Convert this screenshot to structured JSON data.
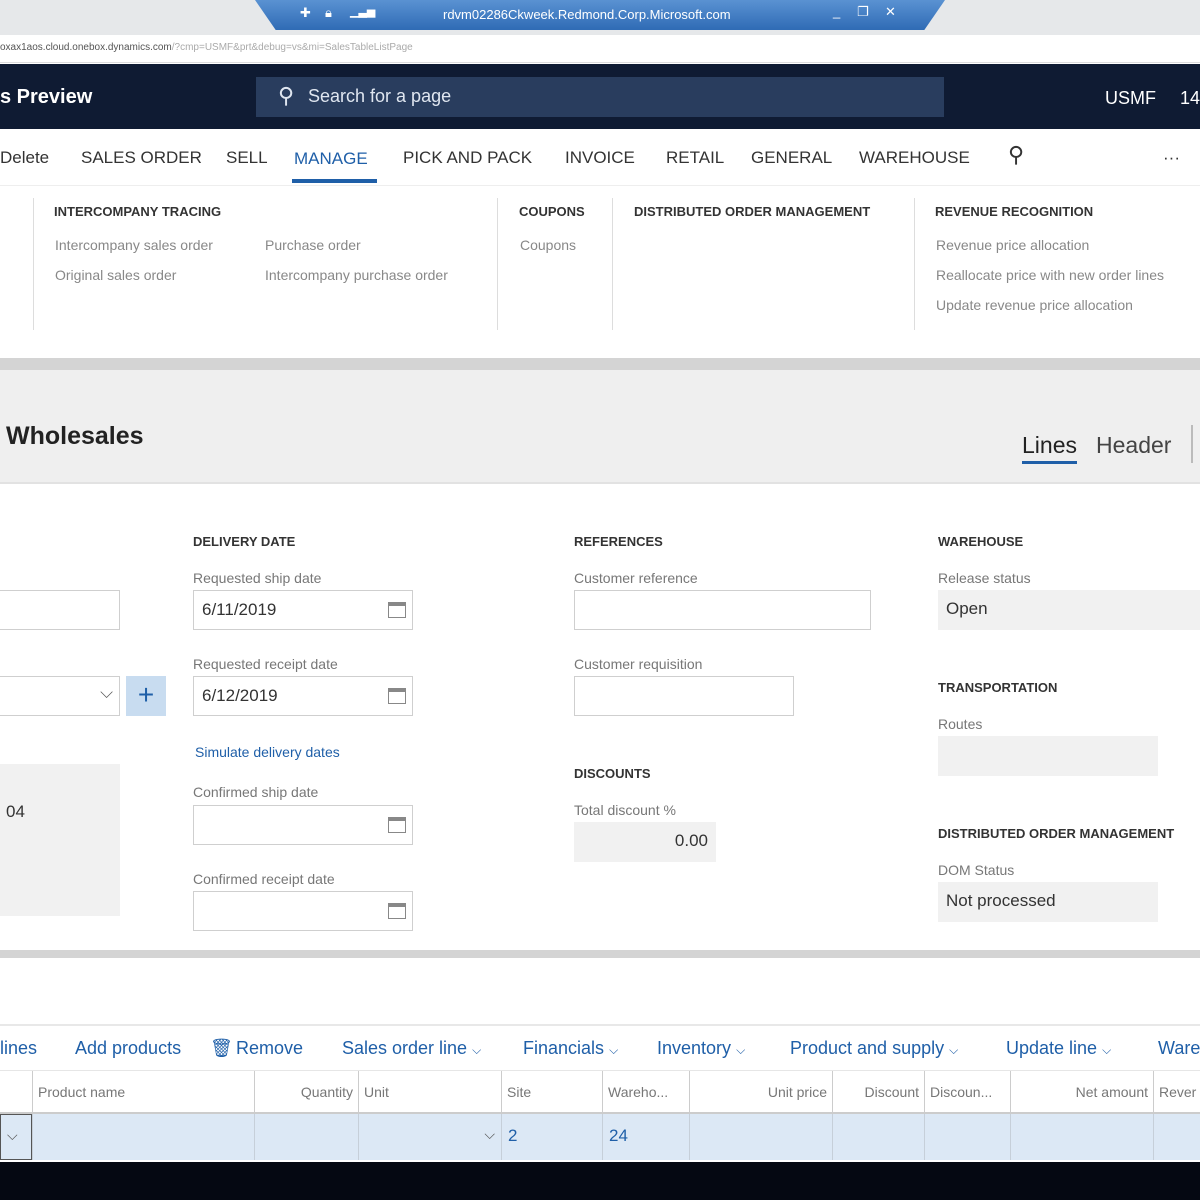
{
  "rdp": {
    "host": "rdvm02286Ckweek.Redmond.Corp.Microsoft.com",
    "icons": [
      "pin-icon",
      "lock-icon",
      "signal-icon"
    ],
    "controls": [
      "minimize-icon",
      "restore-icon",
      "close-icon"
    ]
  },
  "browser": {
    "url_host": "oxax1aos.cloud.onebox.dynamics.com",
    "url_query": "/?cmp=USMF&prt&debug=vs&mi=SalesTableListPage"
  },
  "nav": {
    "title": "s Preview",
    "search_placeholder": "Search for a page",
    "company": "USMF",
    "extra": "14"
  },
  "menu": {
    "items": [
      "Delete",
      "SALES ORDER",
      "SELL",
      "MANAGE",
      "PICK AND PACK",
      "INVOICE",
      "RETAIL",
      "GENERAL",
      "WAREHOUSE"
    ],
    "active": "MANAGE",
    "more": "···"
  },
  "flyout": {
    "intercompany": {
      "heading": "INTERCOMPANY TRACING",
      "links": [
        "Intercompany sales order",
        "Original sales order",
        "Purchase order",
        "Intercompany purchase order"
      ]
    },
    "coupons": {
      "heading": "COUPONS",
      "links": [
        "Coupons"
      ]
    },
    "dom": {
      "heading": "DISTRIBUTED ORDER MANAGEMENT"
    },
    "revenue": {
      "heading": "REVENUE RECOGNITION",
      "links": [
        "Revenue price allocation",
        "Reallocate price with new order lines",
        "Update revenue price allocation"
      ]
    }
  },
  "page": {
    "title": "Wholesales",
    "tabs": [
      "Lines",
      "Header"
    ],
    "active_tab": "Lines"
  },
  "form": {
    "left_value": "04",
    "delivery": {
      "heading": "DELIVERY DATE",
      "requested_ship_label": "Requested ship date",
      "requested_ship": "6/11/2019",
      "requested_receipt_label": "Requested receipt date",
      "requested_receipt": "6/12/2019",
      "simulate_link": "Simulate delivery dates",
      "confirmed_ship_label": "Confirmed ship date",
      "confirmed_ship": "",
      "confirmed_receipt_label": "Confirmed receipt date",
      "confirmed_receipt": ""
    },
    "references": {
      "heading": "REFERENCES",
      "customer_reference_label": "Customer reference",
      "customer_reference": "",
      "customer_requisition_label": "Customer requisition",
      "customer_requisition": ""
    },
    "discounts": {
      "heading": "DISCOUNTS",
      "total_label": "Total discount %",
      "total": "0.00"
    },
    "warehouse": {
      "heading": "WAREHOUSE",
      "release_status_label": "Release status",
      "release_status": "Open"
    },
    "transportation": {
      "heading": "TRANSPORTATION",
      "routes_label": "Routes",
      "routes": ""
    },
    "dom": {
      "heading": "DISTRIBUTED ORDER MANAGEMENT",
      "status_label": "DOM Status",
      "status": "Not processed"
    }
  },
  "lines_toolbar": {
    "items": [
      "lines",
      "Add products",
      "Remove",
      "Sales order line",
      "Financials",
      "Inventory",
      "Product and supply",
      "Update line",
      "Ware"
    ]
  },
  "grid": {
    "columns": [
      "Product name",
      "Quantity",
      "Unit",
      "Site",
      "Wareho...",
      "Unit price",
      "Discount",
      "Discoun...",
      "Net amount",
      "Rever"
    ],
    "row": {
      "site": "2",
      "warehouse": "24"
    }
  },
  "colors": {
    "nav_bg": "#0f1b33",
    "accent": "#1f5fa8",
    "row_selected": "#dce8f5"
  }
}
